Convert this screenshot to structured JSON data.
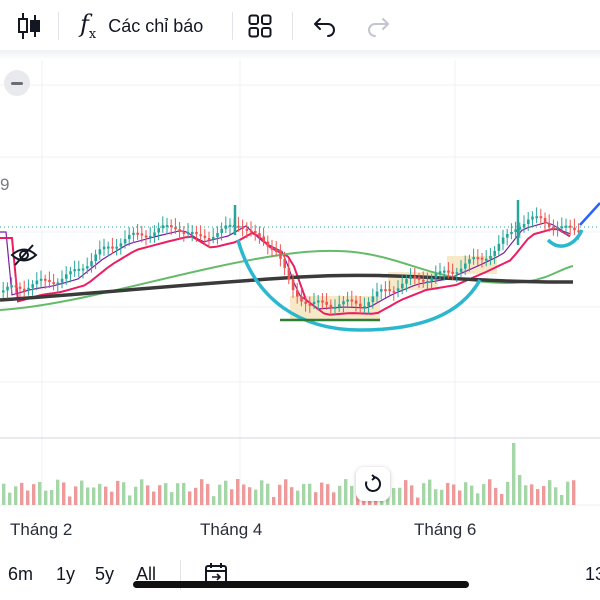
{
  "toolbar": {
    "indicators_label": "Các chỉ báo",
    "icons": [
      "candlestick-icon",
      "function-icon",
      "layout-grid-icon",
      "undo-icon",
      "redo-icon"
    ]
  },
  "chart": {
    "price_label_partial": "9",
    "x_ticks": [
      "Tháng 2",
      "Tháng 4",
      "Tháng 6"
    ],
    "colors": {
      "up": "#26a69a",
      "down": "#ef5350",
      "ma_fast": "#7b1fa2",
      "ma_mid": "#e91e63",
      "ma_slow": "#66bb6a",
      "ma_long": "#3a3a3a",
      "drawing_cup": "#2bb8cf",
      "drawing_box": "#f7e9c8",
      "drawing_arrow": "#2962ff"
    }
  },
  "range_buttons": [
    "6m",
    "1y",
    "5y",
    "All"
  ],
  "bottom_right_partial": "13"
}
